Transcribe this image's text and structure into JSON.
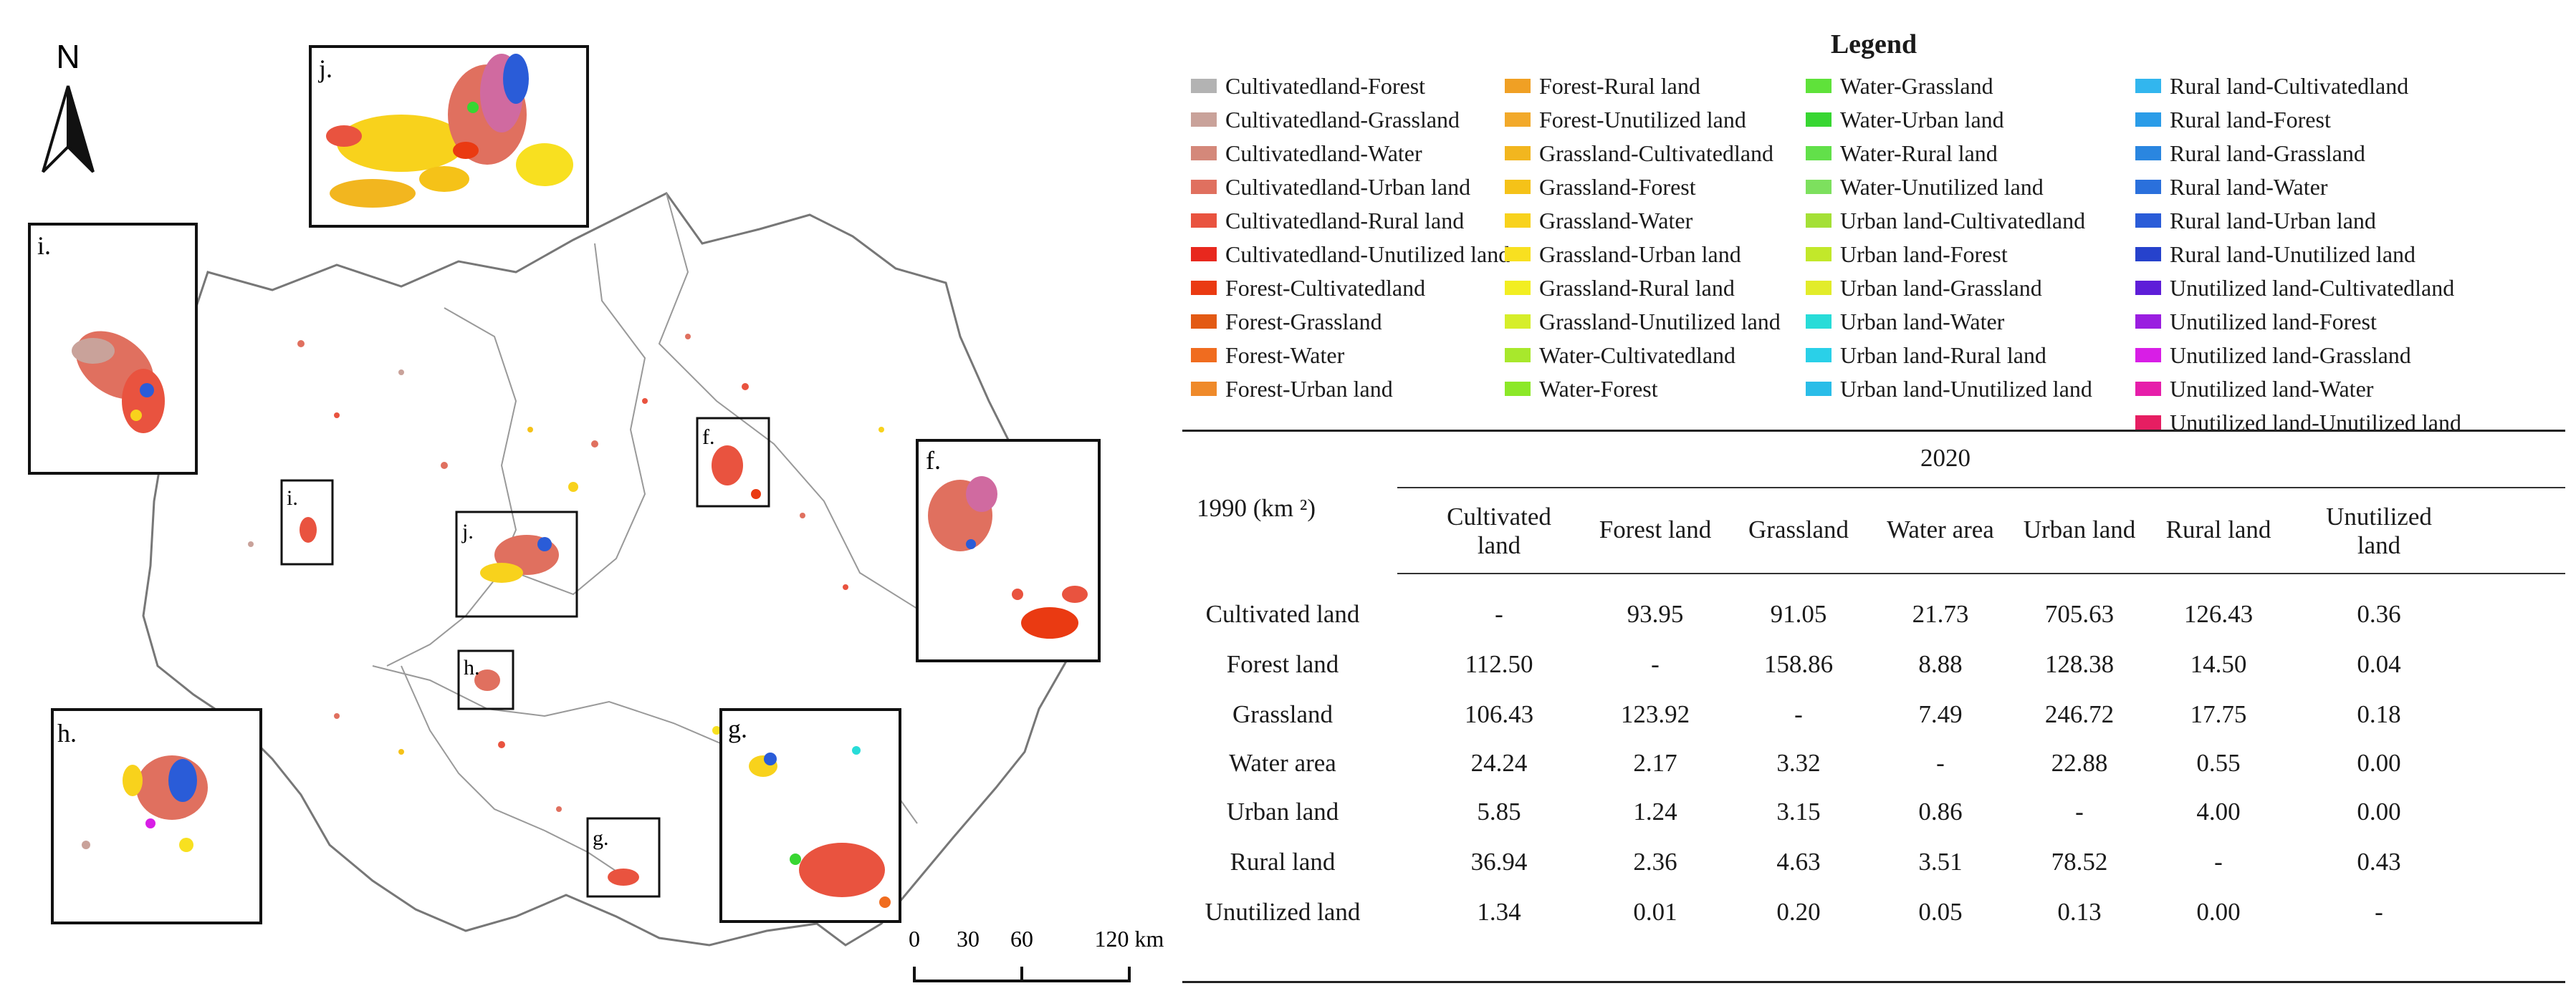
{
  "north_label": "N",
  "scale_bar": {
    "labels": [
      "0",
      "30",
      "60",
      "120 km"
    ]
  },
  "insets": [
    {
      "id": "j",
      "label": "j."
    },
    {
      "id": "i",
      "label": "i."
    },
    {
      "id": "f",
      "label": "f."
    },
    {
      "id": "h",
      "label": "h."
    },
    {
      "id": "g",
      "label": "g."
    }
  ],
  "map_boxes": [
    {
      "id": "i",
      "label": "i."
    },
    {
      "id": "j",
      "label": "j."
    },
    {
      "id": "f",
      "label": "f."
    },
    {
      "id": "h",
      "label": "h."
    },
    {
      "id": "g",
      "label": "g."
    }
  ],
  "legend": {
    "title": "Legend",
    "items": [
      {
        "label": "Cultivatedland-Forest",
        "color": "#b3b3b3"
      },
      {
        "label": "Cultivatedland-Grassland",
        "color": "#c9a29a"
      },
      {
        "label": "Cultivatedland-Water",
        "color": "#d4887a"
      },
      {
        "label": "Cultivatedland-Urban land",
        "color": "#e0705f"
      },
      {
        "label": "Cultivatedland-Rural land",
        "color": "#e9533f"
      },
      {
        "label": "Cultivatedland-Unutilized land",
        "color": "#e8281e"
      },
      {
        "label": "Forest-Cultivatedland",
        "color": "#ea3a12"
      },
      {
        "label": "Forest-Grassland",
        "color": "#e35a14"
      },
      {
        "label": "Forest-Water",
        "color": "#f06c1f"
      },
      {
        "label": "Forest-Urban land",
        "color": "#ef8a2a"
      },
      {
        "label": "Forest-Rural land",
        "color": "#f0a024"
      },
      {
        "label": "Forest-Unutilized land",
        "color": "#f2a92a"
      },
      {
        "label": "Grassland-Cultivatedland",
        "color": "#f2b61f"
      },
      {
        "label": "Grassland-Forest",
        "color": "#f5c218"
      },
      {
        "label": "Grassland-Water",
        "color": "#f8d21c"
      },
      {
        "label": "Grassland-Urban land",
        "color": "#f8e020"
      },
      {
        "label": "Grassland-Rural land",
        "color": "#f2ee22"
      },
      {
        "label": "Grassland-Unutilized land",
        "color": "#d6ee2a"
      },
      {
        "label": "Water-Cultivatedland",
        "color": "#a8e82c"
      },
      {
        "label": "Water-Forest",
        "color": "#8ce828"
      },
      {
        "label": "Water-Grassland",
        "color": "#5fe23a"
      },
      {
        "label": "Water-Urban land",
        "color": "#38d632"
      },
      {
        "label": "Water-Rural land",
        "color": "#62e04a"
      },
      {
        "label": "Water-Unutilized land",
        "color": "#7de05e"
      },
      {
        "label": "Urban land-Cultivatedland",
        "color": "#a4e036"
      },
      {
        "label": "Urban land-Forest",
        "color": "#c2e82a"
      },
      {
        "label": "Urban land-Grassland",
        "color": "#e2ec2a"
      },
      {
        "label": "Urban land-Water",
        "color": "#28dcd8"
      },
      {
        "label": "Urban land-Rural land",
        "color": "#2ad0e8"
      },
      {
        "label": "Urban land-Unutilized land",
        "color": "#2abde8"
      },
      {
        "label": "Rural land-Cultivatedland",
        "color": "#32b6ee"
      },
      {
        "label": "Rural land-Forest",
        "color": "#2a9ce8"
      },
      {
        "label": "Rural land-Grassland",
        "color": "#2a86e0"
      },
      {
        "label": "Rural land-Water",
        "color": "#2a70dc"
      },
      {
        "label": "Rural land-Urban land",
        "color": "#2a5cd8"
      },
      {
        "label": "Rural land-Unutilized land",
        "color": "#2642cc"
      },
      {
        "label": "Unutilized land-Cultivatedland",
        "color": "#5e1ed8"
      },
      {
        "label": "Unutilized land-Forest",
        "color": "#9a1ee0"
      },
      {
        "label": "Unutilized land-Grassland",
        "color": "#d81ee6"
      },
      {
        "label": "Unutilized land-Water",
        "color": "#e61eaa"
      },
      {
        "label": "Unutilized land-Unutilized land",
        "color": "#e61e62"
      }
    ]
  },
  "transition_table": {
    "year_to": "2020",
    "row_axis_label": "1990 (km ²)",
    "columns": [
      "Cultivated land",
      "Forest land",
      "Grassland",
      "Water area",
      "Urban land",
      "Rural land",
      "Unutilized land"
    ],
    "rows": [
      {
        "name": "Cultivated land",
        "values": [
          "-",
          "93.95",
          "91.05",
          "21.73",
          "705.63",
          "126.43",
          "0.36"
        ]
      },
      {
        "name": "Forest land",
        "values": [
          "112.50",
          "-",
          "158.86",
          "8.88",
          "128.38",
          "14.50",
          "0.04"
        ]
      },
      {
        "name": "Grassland",
        "values": [
          "106.43",
          "123.92",
          "-",
          "7.49",
          "246.72",
          "17.75",
          "0.18"
        ]
      },
      {
        "name": "Water area",
        "values": [
          "24.24",
          "2.17",
          "3.32",
          "-",
          "22.88",
          "0.55",
          "0.00"
        ]
      },
      {
        "name": "Urban land",
        "values": [
          "5.85",
          "1.24",
          "3.15",
          "0.86",
          "-",
          "4.00",
          "0.00"
        ]
      },
      {
        "name": "Rural land",
        "values": [
          "36.94",
          "2.36",
          "4.63",
          "3.51",
          "78.52",
          "-",
          "0.43"
        ]
      },
      {
        "name": "Unutilized land",
        "values": [
          "1.34",
          "0.01",
          "0.20",
          "0.05",
          "0.13",
          "0.00",
          "-"
        ]
      }
    ]
  }
}
